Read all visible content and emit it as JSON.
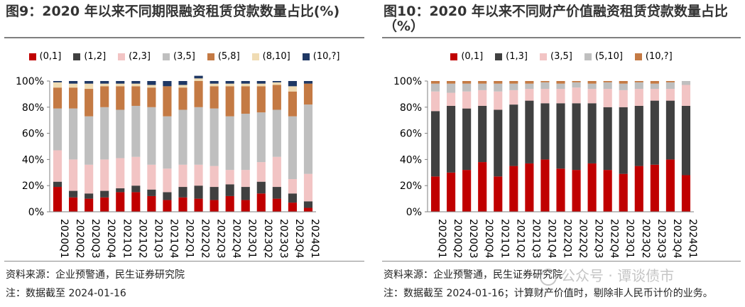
{
  "panels": [
    {
      "title": "图9：2020 年以来不同期限融资租赁贷款数量占比(%)",
      "source": "资料来源：企业预警通，民生证券研究院",
      "note": "注：数据截至 2024-01-16",
      "watermark": "",
      "chart_data": {
        "type": "bar",
        "stacked": true,
        "categories": [
          "2020Q1",
          "2020Q2",
          "2020Q3",
          "2020Q4",
          "2021Q1",
          "2021Q2",
          "2021Q3",
          "2021Q4",
          "2022Q1",
          "2022Q2",
          "2022Q3",
          "2022Q4",
          "2023Q1",
          "2023Q2",
          "2023Q3",
          "2023Q4",
          "2024Q1"
        ],
        "y_ticks": [
          "0%",
          "20%",
          "40%",
          "60%",
          "80%",
          "100%"
        ],
        "ylim": [
          0,
          100
        ],
        "grid": false,
        "legend_position": "top",
        "series": [
          {
            "name": "(0,1]",
            "color": "#c00000",
            "values": [
              19,
              11,
              10,
              11,
              15,
              15,
              12,
              9,
              11,
              10,
              9,
              12,
              9,
              14,
              10,
              7,
              3
            ]
          },
          {
            "name": "(1,2]",
            "color": "#404040",
            "values": [
              4,
              5,
              4,
              5,
              3,
              5,
              5,
              6,
              8,
              10,
              10,
              9,
              10,
              9,
              9,
              7,
              5
            ]
          },
          {
            "name": "(2,3]",
            "color": "#f2c4c4",
            "values": [
              24,
              24,
              22,
              24,
              23,
              22,
              19,
              18,
              17,
              16,
              16,
              11,
              13,
              15,
              23,
              11,
              21
            ]
          },
          {
            "name": "(3,5]",
            "color": "#bfbfbf",
            "values": [
              32,
              39,
              37,
              40,
              37,
              39,
              44,
              40,
              42,
              44,
              44,
              41,
              43,
              38,
              36,
              48,
              53
            ]
          },
          {
            "name": "(5,8]",
            "color": "#c47a44",
            "values": [
              16,
              16,
              21,
              16,
              18,
              15,
              15,
              23,
              17,
              20,
              17,
              23,
              21,
              20,
              19,
              19,
              16
            ]
          },
          {
            "name": "(8,10]",
            "color": "#f0dcb4",
            "values": [
              4,
              3,
              4,
              2,
              2,
              2,
              2,
              0,
              2,
              2,
              2,
              2,
              2,
              2,
              2,
              4,
              0
            ]
          },
          {
            "name": "(10,?]",
            "color": "#1f3864",
            "values": [
              1,
              2,
              2,
              2,
              2,
              2,
              3,
              4,
              3,
              2,
              2,
              2,
              2,
              2,
              1,
              4,
              2
            ]
          }
        ]
      }
    },
    {
      "title": "图10：2020 年以来不同财产价值融资租赁贷款数量占比（%）",
      "source": "资料来源：企业预警通，民生证券研究院",
      "note": "注：数据截至 2024-01-16；计算财产价值时，剔除非人民币计价的业务。",
      "watermark": "公众号 · 谭谈债市",
      "chart_data": {
        "type": "bar",
        "stacked": true,
        "categories": [
          "2020Q1",
          "2020Q2",
          "2020Q3",
          "2020Q4",
          "2021Q1",
          "2021Q2",
          "2021Q3",
          "2021Q4",
          "2022Q1",
          "2022Q2",
          "2022Q3",
          "2022Q4",
          "2023Q1",
          "2023Q2",
          "2023Q3",
          "2023Q4",
          "2024Q1"
        ],
        "y_ticks": [
          "0%",
          "20%",
          "40%",
          "60%",
          "80%",
          "100%"
        ],
        "ylim": [
          0,
          100
        ],
        "grid": false,
        "legend_position": "top",
        "series": [
          {
            "name": "(0,1]",
            "color": "#c00000",
            "values": [
              27,
              30,
              32,
              38,
              27,
              35,
              37,
              40,
              33,
              32,
              37,
              32,
              29,
              35,
              36,
              40,
              28
            ]
          },
          {
            "name": "(1,3]",
            "color": "#404040",
            "values": [
              50,
              51,
              47,
              43,
              51,
              47,
              48,
              43,
              50,
              51,
              46,
              48,
              51,
              46,
              49,
              45,
              53
            ]
          },
          {
            "name": "(3,5]",
            "color": "#f2c4c4",
            "values": [
              15,
              10,
              13,
              12,
              14,
              11,
              9,
              11,
              11,
              12,
              11,
              14,
              13,
              13,
              9,
              9,
              16
            ]
          },
          {
            "name": "(5,10]",
            "color": "#bfbfbf",
            "values": [
              6,
              7,
              6,
              5,
              6,
              5,
              4,
              5,
              4,
              4,
              4,
              5,
              5,
              5,
              4,
              5,
              3
            ]
          },
          {
            "name": "(10,?]",
            "color": "#c47a44",
            "values": [
              2,
              2,
              2,
              2,
              2,
              2,
              2,
              1,
              2,
              1,
              2,
              1,
              2,
              1,
              2,
              1,
              0
            ]
          }
        ]
      }
    }
  ]
}
